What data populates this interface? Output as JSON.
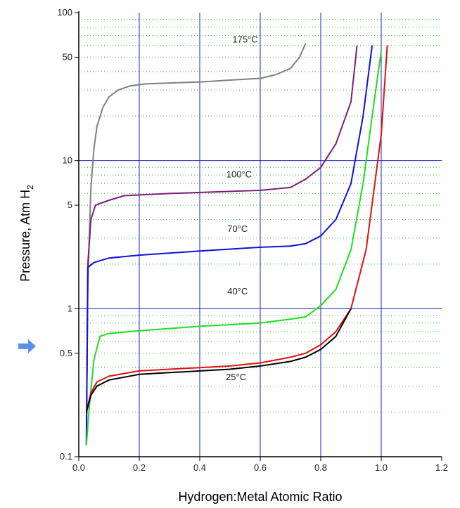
{
  "chart_data": {
    "type": "line",
    "title": "",
    "xlabel": "Hydrogen:Metal Atomic Ratio",
    "ylabel": "Pressure, Atm H",
    "ylabel_subscript": "2",
    "xlim": [
      0.0,
      1.2
    ],
    "ylim": [
      0.1,
      100
    ],
    "yscale": "log",
    "x_ticks": [
      "0.0",
      "0.2",
      "0.4",
      "0.6",
      "0.8",
      "1.0",
      "1.2"
    ],
    "y_ticks": [
      {
        "value": 0.1,
        "label": "0.1"
      },
      {
        "value": 0.5,
        "label": "0.5"
      },
      {
        "value": 1,
        "label": "1"
      },
      {
        "value": 5,
        "label": "5"
      },
      {
        "value": 10,
        "label": "10"
      },
      {
        "value": 50,
        "label": "50"
      },
      {
        "value": 100,
        "label": "100"
      }
    ],
    "grid": {
      "major": true,
      "minor_horizontal_dotted": true,
      "vertical_color": "#2020c0",
      "horizontal_major_color": "#2020c0",
      "minor_color": "#33bb33"
    },
    "series": [
      {
        "name": "175°C",
        "color": "#808080",
        "x": [
          0.025,
          0.03,
          0.04,
          0.05,
          0.06,
          0.08,
          0.1,
          0.13,
          0.17,
          0.22,
          0.3,
          0.4,
          0.5,
          0.6,
          0.65,
          0.7,
          0.73,
          0.75
        ],
        "y": [
          0.15,
          1.5,
          6.5,
          12,
          17,
          23,
          27,
          30,
          32,
          33,
          33.5,
          34,
          35,
          36,
          38,
          42,
          50,
          62
        ]
      },
      {
        "name": "100°C",
        "color": "#7b1e7a",
        "x": [
          0.025,
          0.03,
          0.04,
          0.055,
          0.1,
          0.15,
          0.3,
          0.5,
          0.6,
          0.7,
          0.75,
          0.8,
          0.85,
          0.9,
          0.92
        ],
        "y": [
          0.12,
          2.0,
          4.0,
          5.0,
          5.4,
          5.8,
          6.0,
          6.2,
          6.3,
          6.6,
          7.5,
          9.0,
          13,
          25,
          60
        ]
      },
      {
        "name": "70°C",
        "color": "#1010dd",
        "x": [
          0.025,
          0.03,
          0.05,
          0.1,
          0.2,
          0.4,
          0.6,
          0.7,
          0.75,
          0.8,
          0.85,
          0.9,
          0.94,
          0.97
        ],
        "y": [
          0.12,
          1.9,
          2.05,
          2.2,
          2.3,
          2.45,
          2.6,
          2.65,
          2.75,
          3.1,
          4.0,
          7.0,
          20,
          60
        ]
      },
      {
        "name": "40°C",
        "color": "#22dd22",
        "x": [
          0.025,
          0.035,
          0.05,
          0.07,
          0.1,
          0.2,
          0.4,
          0.6,
          0.7,
          0.75,
          0.8,
          0.85,
          0.9,
          0.94,
          0.97,
          1.0
        ],
        "y": [
          0.12,
          0.22,
          0.45,
          0.65,
          0.68,
          0.71,
          0.76,
          0.8,
          0.85,
          0.88,
          1.05,
          1.35,
          2.5,
          7.0,
          20,
          55
        ]
      },
      {
        "name": "25°C",
        "color": "#dd1111",
        "x": [
          0.025,
          0.04,
          0.06,
          0.1,
          0.2,
          0.3,
          0.4,
          0.5,
          0.6,
          0.7,
          0.75,
          0.8,
          0.85,
          0.9,
          0.95,
          1.0,
          1.02
        ],
        "y": [
          0.2,
          0.27,
          0.32,
          0.35,
          0.38,
          0.39,
          0.4,
          0.41,
          0.43,
          0.47,
          0.5,
          0.57,
          0.7,
          1.0,
          2.5,
          15,
          60
        ]
      },
      {
        "name": "",
        "color": "#000000",
        "x": [
          0.025,
          0.04,
          0.06,
          0.1,
          0.2,
          0.3,
          0.4,
          0.5,
          0.6,
          0.7,
          0.75,
          0.8,
          0.85,
          0.9
        ],
        "y": [
          0.2,
          0.26,
          0.3,
          0.33,
          0.36,
          0.37,
          0.38,
          0.39,
          0.41,
          0.44,
          0.47,
          0.53,
          0.65,
          1.0
        ]
      }
    ],
    "annotations": [
      {
        "text": "175°C",
        "x": 0.55,
        "y": 63
      },
      {
        "text": "100°C",
        "x": 0.53,
        "y": 7.7
      },
      {
        "text": "70°C",
        "x": 0.525,
        "y": 3.3
      },
      {
        "text": "40°C",
        "x": 0.525,
        "y": 1.25
      },
      {
        "text": "25°C",
        "x": 0.52,
        "y": 0.33
      }
    ],
    "pointer_arrow": {
      "color": "#5b8fe8",
      "target_y": 0.5
    }
  }
}
